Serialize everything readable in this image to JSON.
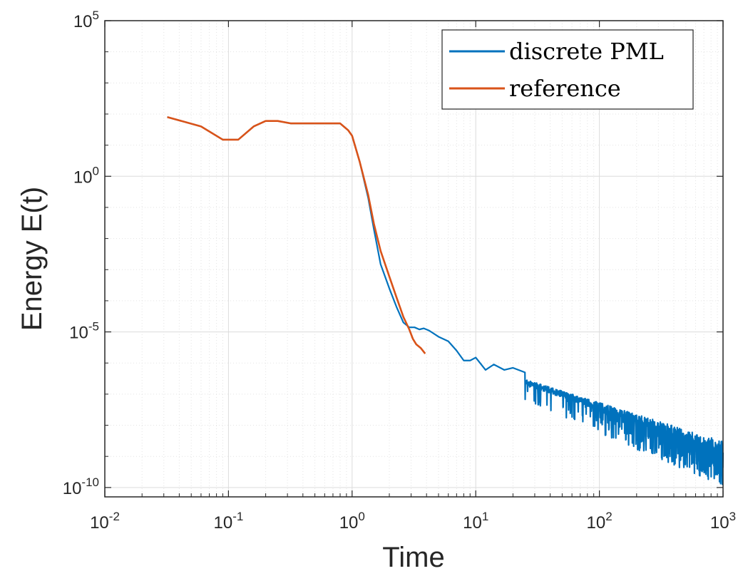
{
  "chart_data": {
    "type": "line",
    "xlabel": "Time",
    "ylabel": "Energy E(t)",
    "xscale": "log",
    "yscale": "log",
    "xlim": [
      0.01,
      1000
    ],
    "ylim": [
      5e-11,
      100000
    ],
    "grid": true,
    "minor_grid": true,
    "legend_position": "top-right",
    "x_ticks": [
      {
        "base": "10",
        "exp": "-2"
      },
      {
        "base": "10",
        "exp": "-1"
      },
      {
        "base": "10",
        "exp": "0"
      },
      {
        "base": "10",
        "exp": "1"
      },
      {
        "base": "10",
        "exp": "2"
      },
      {
        "base": "10",
        "exp": "3"
      }
    ],
    "y_ticks": [
      {
        "base": "10",
        "exp": "5"
      },
      {
        "base": "10",
        "exp": "0"
      },
      {
        "base": "10",
        "exp": "-5"
      },
      {
        "base": "10",
        "exp": "-10"
      }
    ],
    "series": [
      {
        "name": "discrete PML",
        "color": "#0072BD",
        "x": [
          0.032,
          0.06,
          0.09,
          0.12,
          0.16,
          0.2,
          0.25,
          0.32,
          0.45,
          0.65,
          0.8,
          0.93,
          1.0,
          1.15,
          1.35,
          1.5,
          1.7,
          2.0,
          2.3,
          2.6,
          2.9,
          3.2,
          3.5,
          3.8,
          4.2,
          5,
          6,
          7,
          8,
          9,
          10,
          12,
          14,
          17,
          20,
          25
        ],
        "y": [
          80,
          40,
          15,
          15,
          40,
          60,
          60,
          50,
          50,
          50,
          50,
          30,
          20,
          3,
          0.2,
          0.02,
          0.0015,
          0.00025,
          6e-05,
          2e-05,
          1.4e-05,
          1.4e-05,
          1.2e-05,
          1.3e-05,
          1.1e-05,
          7e-06,
          5e-06,
          2.5e-06,
          1.2e-06,
          1.2e-06,
          1.5e-06,
          6e-07,
          9e-07,
          6e-07,
          7e-07,
          5e-07
        ],
        "noisy_tail": {
          "x_range": [
            25,
            1000
          ],
          "upper_start": 3e-07,
          "upper_end": 3e-09,
          "lower_start": 6e-08,
          "lower_end": 1e-10
        }
      },
      {
        "name": "reference",
        "color": "#D95319",
        "x": [
          0.032,
          0.06,
          0.09,
          0.12,
          0.16,
          0.2,
          0.25,
          0.32,
          0.45,
          0.65,
          0.8,
          0.93,
          1.0,
          1.15,
          1.35,
          1.5,
          1.7,
          2.0,
          2.3,
          2.6,
          2.9,
          3.1,
          3.3,
          3.6,
          3.9
        ],
        "y": [
          80,
          40,
          15,
          15,
          40,
          60,
          60,
          50,
          50,
          50,
          50,
          30,
          20,
          3,
          0.25,
          0.03,
          0.004,
          0.0006,
          0.00012,
          3e-05,
          1.2e-05,
          6e-06,
          4e-06,
          3e-06,
          2e-06
        ]
      }
    ]
  }
}
